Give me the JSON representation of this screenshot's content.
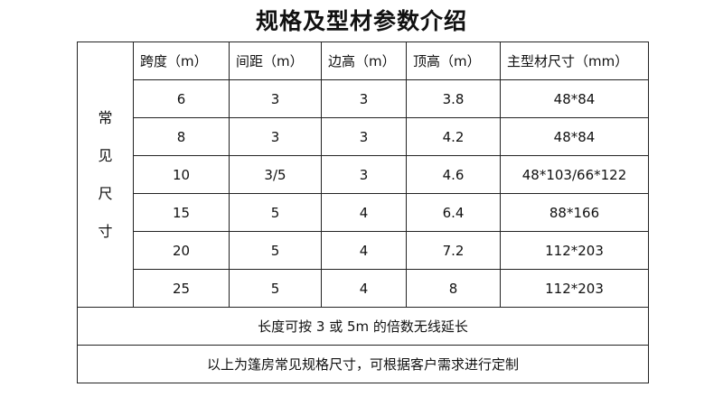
{
  "title": "规格及型材参数介绍",
  "table": {
    "side_label": [
      "常",
      "见",
      "尺",
      "寸"
    ],
    "headers": [
      "跨度（m）",
      "间距（m）",
      "边高（m）",
      "顶高（m）",
      "主型材尺寸（mm）"
    ],
    "rows": [
      [
        "6",
        "3",
        "3",
        "3.8",
        "48*84"
      ],
      [
        "8",
        "3",
        "3",
        "4.2",
        "48*84"
      ],
      [
        "10",
        "3/5",
        "3",
        "4.6",
        "48*103/66*122"
      ],
      [
        "15",
        "5",
        "4",
        "6.4",
        "88*166"
      ],
      [
        "20",
        "5",
        "4",
        "7.2",
        "112*203"
      ],
      [
        "25",
        "5",
        "4",
        "8",
        "112*203"
      ]
    ],
    "note1": "长度可按 3 或 5m 的倍数无线延长",
    "note2": "以上为篷房常见规格尺寸，可根据客户需求进行定制"
  }
}
